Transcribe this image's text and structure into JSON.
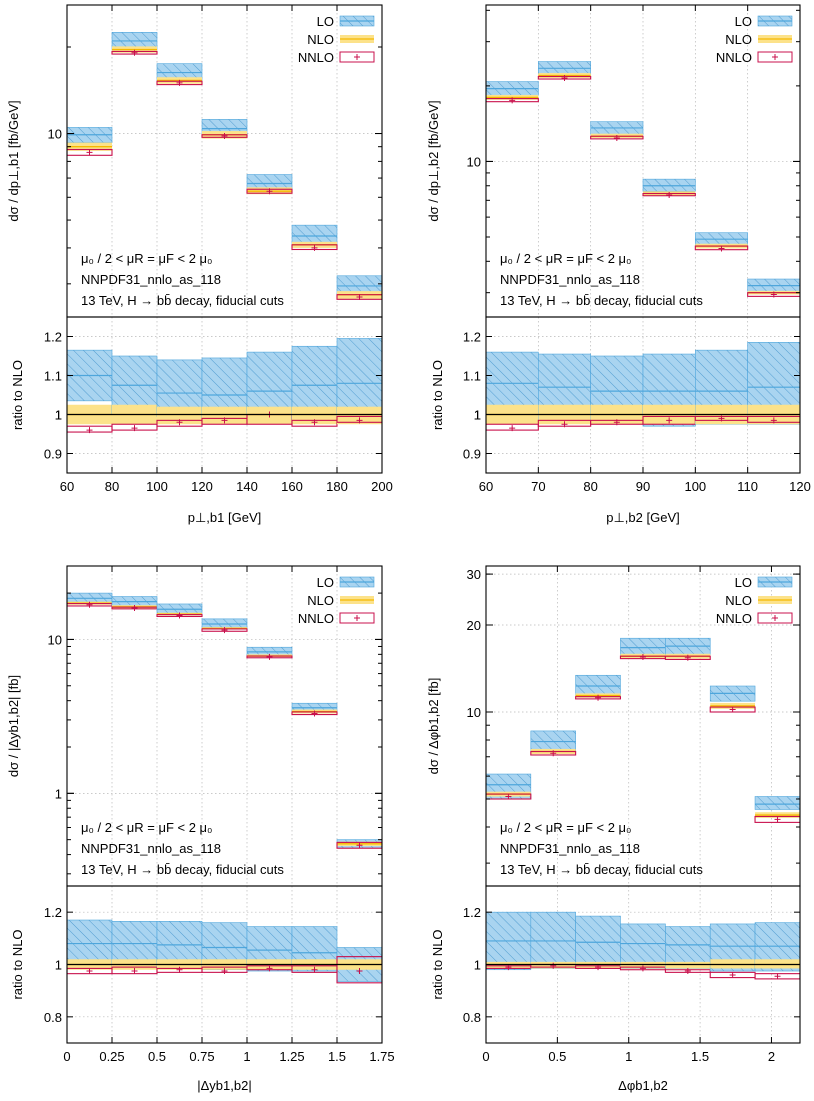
{
  "legend": {
    "lo": "LO",
    "nlo": "NLO",
    "nnlo": "NNLO"
  },
  "info_lines": [
    "μ₀ / 2 < μR = μF < 2 μ₀",
    "NNPDF31_nnlo_as_118",
    "13 TeV, H → bb̄ decay, fiducial cuts"
  ],
  "colors": {
    "lo": "#4ea6dc",
    "lo_fill": "#a9d4f0",
    "nlo": "#f5b800",
    "nlo_fill": "#fce28a",
    "nnlo": "#c8104c"
  },
  "chart_data": [
    {
      "type": "bar",
      "xlabel": "p⊥,b1 [GeV]",
      "ylabel_main": "dσ / dp⊥,b1 [fb/GeV]",
      "ylabel_ratio": "ratio to NLO",
      "x_ticks": [
        "60",
        "80",
        "100",
        "120",
        "140",
        "160",
        "180",
        "200"
      ],
      "xlim": [
        60,
        200
      ],
      "main_log": true,
      "main_ylim": [
        2.3,
        28
      ],
      "main_yticks": [
        "10"
      ],
      "ratio_ylim": [
        0.85,
        1.25
      ],
      "ratio_yticks": [
        "1",
        "0.9",
        "1",
        "1.1",
        "1.2"
      ],
      "bin_edges": [
        60,
        80,
        100,
        120,
        140,
        160,
        180,
        200
      ],
      "series": [
        {
          "name": "LO",
          "central": [
            9.9,
            21.0,
            16.3,
            10.4,
            6.7,
            4.4,
            2.95
          ],
          "low": [
            9.3,
            19.7,
            15.2,
            9.8,
            6.3,
            4.1,
            2.75
          ],
          "high": [
            10.5,
            22.5,
            17.5,
            11.2,
            7.2,
            4.8,
            3.2
          ]
        },
        {
          "name": "NLO",
          "central": [
            9.0,
            19.6,
            15.3,
            9.9,
            6.3,
            4.1,
            2.75
          ],
          "low": [
            8.7,
            19.1,
            14.9,
            9.6,
            6.15,
            4.0,
            2.66
          ],
          "high": [
            9.3,
            20.1,
            15.7,
            10.2,
            6.5,
            4.2,
            2.83
          ]
        },
        {
          "name": "NNLO",
          "central": [
            8.6,
            19.1,
            15.0,
            9.8,
            6.3,
            4.0,
            2.7
          ],
          "low": [
            8.4,
            18.9,
            14.8,
            9.7,
            6.2,
            3.95,
            2.65
          ],
          "high": [
            8.8,
            19.3,
            15.2,
            9.9,
            6.4,
            4.1,
            2.75
          ]
        }
      ],
      "ratio": [
        {
          "name": "LO",
          "central": [
            1.1,
            1.075,
            1.055,
            1.05,
            1.06,
            1.075,
            1.08
          ],
          "low": [
            1.035,
            1.0,
            0.995,
            0.98,
            0.98,
            0.98,
            0.98
          ],
          "high": [
            1.165,
            1.15,
            1.14,
            1.145,
            1.16,
            1.175,
            1.195
          ]
        },
        {
          "name": "NLO",
          "central": [
            1.0,
            1.0,
            1.0,
            1.0,
            1.0,
            1.0,
            1.0
          ],
          "low": [
            0.975,
            0.975,
            0.975,
            0.975,
            0.975,
            0.975,
            0.975
          ],
          "high": [
            1.025,
            1.025,
            1.02,
            1.02,
            1.02,
            1.02,
            1.02
          ]
        },
        {
          "name": "NNLO",
          "central": [
            0.96,
            0.965,
            0.98,
            0.985,
            1.0,
            0.98,
            0.985
          ],
          "low": [
            0.955,
            0.96,
            0.97,
            0.975,
            0.975,
            0.97,
            0.98
          ],
          "high": [
            0.97,
            0.975,
            0.985,
            0.99,
            1.0,
            0.985,
            0.995
          ]
        }
      ]
    },
    {
      "type": "bar",
      "xlabel": "p⊥,b2 [GeV]",
      "ylabel_main": "dσ / dp⊥,b2 [fb/GeV]",
      "ylabel_ratio": "ratio to NLO",
      "x_ticks": [
        "60",
        "70",
        "80",
        "90",
        "100",
        "110",
        "120"
      ],
      "xlim": [
        60,
        120
      ],
      "main_log": true,
      "main_ylim": [
        2.4,
        42
      ],
      "main_yticks": [
        "10"
      ],
      "ratio_ylim": [
        0.85,
        1.25
      ],
      "ratio_yticks": [
        "1",
        "0.9",
        "1",
        "1.1",
        "1.2"
      ],
      "bin_edges": [
        60,
        70,
        80,
        90,
        100,
        110,
        120
      ],
      "series": [
        {
          "name": "LO",
          "central": [
            19.5,
            23.5,
            13.6,
            8.0,
            4.9,
            3.2
          ],
          "low": [
            18.3,
            22.3,
            12.8,
            7.6,
            4.6,
            3.0
          ],
          "high": [
            20.8,
            25.0,
            14.4,
            8.5,
            5.2,
            3.4
          ]
        },
        {
          "name": "NLO",
          "central": [
            18.0,
            22.0,
            12.6,
            7.45,
            4.6,
            3.0
          ],
          "low": [
            17.6,
            21.5,
            12.4,
            7.3,
            4.5,
            2.95
          ],
          "high": [
            18.4,
            22.5,
            12.9,
            7.6,
            4.7,
            3.05
          ]
        },
        {
          "name": "NNLO",
          "central": [
            17.5,
            21.5,
            12.4,
            7.35,
            4.5,
            2.95
          ],
          "low": [
            17.3,
            21.3,
            12.3,
            7.3,
            4.45,
            2.9
          ],
          "high": [
            17.8,
            21.8,
            12.6,
            7.45,
            4.6,
            3.0
          ]
        }
      ],
      "ratio": [
        {
          "name": "LO",
          "central": [
            1.08,
            1.07,
            1.06,
            1.06,
            1.06,
            1.07
          ],
          "low": [
            1.0,
            0.985,
            0.98,
            0.97,
            0.975,
            0.975
          ],
          "high": [
            1.16,
            1.155,
            1.15,
            1.155,
            1.165,
            1.185
          ]
        },
        {
          "name": "NLO",
          "central": [
            1.0,
            1.0,
            1.0,
            1.0,
            1.0,
            1.0
          ],
          "low": [
            0.975,
            0.975,
            0.975,
            0.975,
            0.975,
            0.975
          ],
          "high": [
            1.025,
            1.025,
            1.025,
            1.025,
            1.025,
            1.025
          ]
        },
        {
          "name": "NNLO",
          "central": [
            0.965,
            0.975,
            0.98,
            0.985,
            0.99,
            0.985
          ],
          "low": [
            0.96,
            0.97,
            0.975,
            0.975,
            0.985,
            0.98
          ],
          "high": [
            0.975,
            0.985,
            0.985,
            0.995,
            0.995,
            0.995
          ]
        }
      ]
    },
    {
      "type": "bar",
      "xlabel": "|Δyb1,b2|",
      "ylabel_main": "dσ / |Δyb1,b2| [fb]",
      "ylabel_ratio": "ratio to NLO",
      "x_ticks": [
        "0",
        "0.25",
        "0.5",
        "0.75",
        "1",
        "1.25",
        "1.5",
        "1.75"
      ],
      "xlim": [
        0,
        1.75
      ],
      "main_log": true,
      "main_ylim": [
        0.25,
        30
      ],
      "main_yticks": [
        "10",
        "1"
      ],
      "ratio_ylim": [
        0.7,
        1.3
      ],
      "ratio_yticks": [
        "0.8",
        "1",
        "1.2"
      ],
      "bin_edges": [
        0,
        0.25,
        0.5,
        0.75,
        1,
        1.25,
        1.5,
        1.75
      ],
      "series": [
        {
          "name": "LO",
          "central": [
            18.5,
            17.6,
            15.7,
            12.6,
            8.3,
            3.6,
            0.47
          ],
          "low": [
            17.5,
            16.6,
            14.7,
            11.8,
            7.8,
            3.35,
            0.44
          ],
          "high": [
            20.0,
            19.0,
            17.0,
            13.6,
            8.9,
            3.85,
            0.5
          ]
        },
        {
          "name": "NLO",
          "central": [
            17.2,
            16.3,
            14.6,
            11.8,
            7.8,
            3.4,
            0.47
          ],
          "low": [
            16.8,
            15.9,
            14.3,
            11.6,
            7.7,
            3.3,
            0.455
          ],
          "high": [
            17.6,
            16.7,
            14.9,
            12.0,
            8.0,
            3.5,
            0.485
          ]
        },
        {
          "name": "NNLO",
          "central": [
            16.8,
            16.0,
            14.3,
            11.5,
            7.7,
            3.3,
            0.46
          ],
          "low": [
            16.5,
            15.8,
            14.1,
            11.3,
            7.6,
            3.25,
            0.44
          ],
          "high": [
            17.1,
            16.2,
            14.5,
            11.7,
            7.8,
            3.38,
            0.48
          ]
        }
      ],
      "ratio": [
        {
          "name": "LO",
          "central": [
            1.08,
            1.08,
            1.075,
            1.065,
            1.055,
            1.045,
            1.0
          ],
          "low": [
            0.995,
            0.99,
            0.99,
            0.98,
            0.975,
            0.975,
            0.935
          ],
          "high": [
            1.17,
            1.165,
            1.165,
            1.16,
            1.145,
            1.145,
            1.065
          ]
        },
        {
          "name": "NLO",
          "central": [
            1.0,
            1.0,
            1.0,
            1.0,
            1.0,
            1.0,
            1.0
          ],
          "low": [
            0.98,
            0.98,
            0.98,
            0.98,
            0.98,
            0.98,
            0.98
          ],
          "high": [
            1.02,
            1.02,
            1.02,
            1.02,
            1.02,
            1.02,
            1.02
          ]
        },
        {
          "name": "NNLO",
          "central": [
            0.975,
            0.975,
            0.98,
            0.975,
            0.985,
            0.98,
            0.975
          ],
          "low": [
            0.965,
            0.965,
            0.97,
            0.97,
            0.98,
            0.97,
            0.93
          ],
          "high": [
            0.985,
            0.99,
            0.985,
            0.99,
            0.995,
            0.995,
            1.03
          ]
        }
      ]
    },
    {
      "type": "bar",
      "xlabel": "Δφb1,b2",
      "ylabel_main": "dσ / Δφb1,b2 [fb]",
      "ylabel_ratio": "ratio to NLO",
      "x_ticks": [
        "0",
        "0.5",
        "1",
        "1.5",
        "2"
      ],
      "xlim": [
        0,
        2.2
      ],
      "main_log": true,
      "main_ylim": [
        2.5,
        32
      ],
      "main_yticks": [
        "30",
        "20",
        "10"
      ],
      "ratio_ylim": [
        0.7,
        1.3
      ],
      "ratio_yticks": [
        "0.8",
        "1",
        "1.2"
      ],
      "bin_edges": [
        0,
        0.314,
        0.628,
        0.942,
        1.257,
        1.571,
        1.885,
        2.2
      ],
      "series": [
        {
          "name": "LO",
          "central": [
            5.6,
            7.9,
            12.3,
            16.7,
            16.9,
            11.6,
            4.8
          ],
          "low": [
            5.0,
            7.2,
            11.4,
            15.6,
            15.8,
            10.9,
            4.6
          ],
          "high": [
            6.1,
            8.6,
            13.4,
            18.0,
            18.0,
            12.3,
            5.1
          ]
        },
        {
          "name": "NLO",
          "central": [
            5.2,
            7.3,
            11.4,
            15.6,
            15.6,
            10.5,
            4.4
          ],
          "low": [
            5.1,
            7.15,
            11.2,
            15.3,
            15.3,
            10.25,
            4.3
          ],
          "high": [
            5.3,
            7.45,
            11.6,
            15.9,
            15.9,
            10.75,
            4.5
          ]
        },
        {
          "name": "NNLO",
          "central": [
            5.1,
            7.2,
            11.2,
            15.5,
            15.4,
            10.2,
            4.25
          ],
          "low": [
            5.0,
            7.1,
            11.1,
            15.3,
            15.2,
            10.0,
            4.15
          ],
          "high": [
            5.2,
            7.3,
            11.3,
            15.6,
            15.6,
            10.4,
            4.35
          ]
        }
      ],
      "ratio": [
        {
          "name": "LO",
          "central": [
            1.09,
            1.09,
            1.085,
            1.08,
            1.075,
            1.07,
            1.07
          ],
          "low": [
            0.98,
            0.985,
            0.985,
            0.985,
            0.985,
            0.975,
            0.975
          ],
          "high": [
            1.2,
            1.2,
            1.185,
            1.155,
            1.145,
            1.155,
            1.16
          ]
        },
        {
          "name": "NLO",
          "central": [
            1.0,
            1.0,
            1.0,
            1.0,
            1.0,
            1.0,
            1.0
          ],
          "low": [
            0.985,
            0.985,
            0.985,
            0.985,
            0.985,
            0.985,
            0.985
          ],
          "high": [
            1.01,
            1.01,
            1.01,
            1.01,
            1.01,
            1.02,
            1.02
          ]
        },
        {
          "name": "NNLO",
          "central": [
            0.99,
            0.995,
            0.99,
            0.985,
            0.975,
            0.96,
            0.955
          ],
          "low": [
            0.985,
            0.99,
            0.985,
            0.98,
            0.97,
            0.95,
            0.945
          ],
          "high": [
            0.995,
            1.0,
            0.995,
            0.99,
            0.98,
            0.97,
            0.965
          ]
        }
      ]
    }
  ]
}
